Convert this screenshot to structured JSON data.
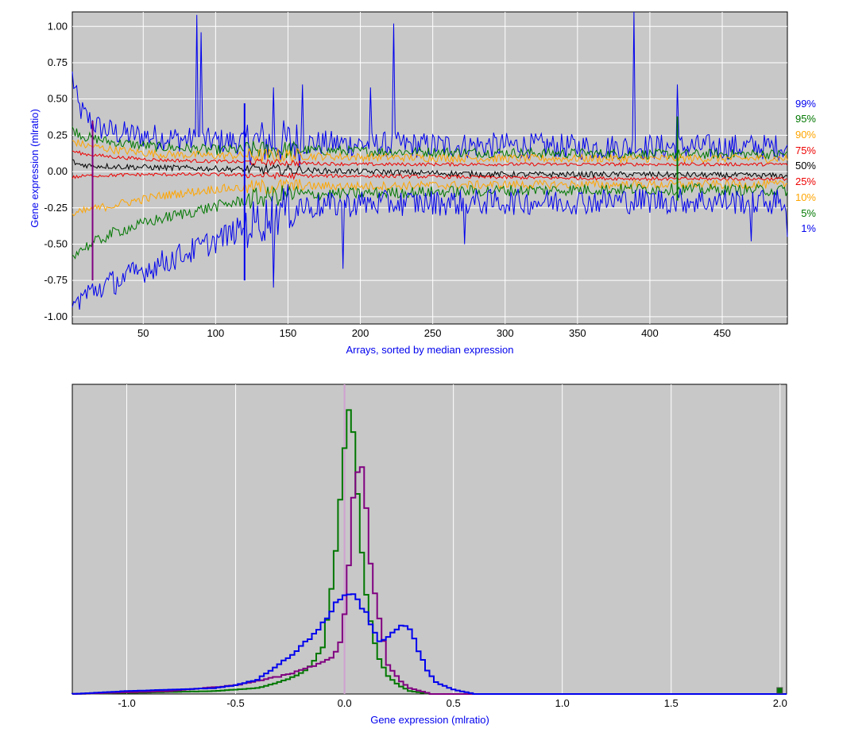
{
  "chart_data": [
    {
      "type": "line",
      "title": "",
      "xlabel": "Arrays, sorted by median expression",
      "ylabel": "Gene expression (mlratio)",
      "xlim": [
        1,
        495
      ],
      "ylim": [
        -1.05,
        1.1
      ],
      "x_ticks": [
        50,
        100,
        150,
        200,
        250,
        300,
        350,
        400,
        450
      ],
      "y_ticks": [
        -1.0,
        -0.75,
        -0.5,
        -0.25,
        0.0,
        0.25,
        0.5,
        0.75,
        1.0
      ],
      "y_tick_labels": [
        "-1.00",
        "-0.75",
        "-0.50",
        "-0.25",
        "0.00",
        "0.25",
        "0.50",
        "0.75",
        "1.00"
      ],
      "grid": true,
      "legend_placement": "right",
      "series": [
        {
          "name": "99%",
          "color": "#0000ee",
          "points": [
            [
              1,
              0.66
            ],
            [
              5,
              0.45
            ],
            [
              10,
              0.38
            ],
            [
              20,
              0.3
            ],
            [
              30,
              0.27
            ],
            [
              45,
              0.25
            ],
            [
              60,
              0.24
            ],
            [
              80,
              0.22
            ],
            [
              100,
              0.21
            ],
            [
              150,
              0.2
            ],
            [
              200,
              0.19
            ],
            [
              250,
              0.18
            ],
            [
              300,
              0.18
            ],
            [
              350,
              0.17
            ],
            [
              400,
              0.17
            ],
            [
              450,
              0.17
            ],
            [
              495,
              0.17
            ]
          ],
          "spikes": [
            [
              87,
              1.08
            ],
            [
              90,
              0.96
            ],
            [
              223,
              1.02
            ],
            [
              389,
              1.1
            ],
            [
              207,
              0.58
            ],
            [
              419,
              0.6
            ],
            [
              160,
              0.6
            ],
            [
              140,
              0.58
            ]
          ]
        },
        {
          "name": "95%",
          "color": "#007700",
          "points": [
            [
              1,
              0.29
            ],
            [
              10,
              0.24
            ],
            [
              30,
              0.2
            ],
            [
              60,
              0.17
            ],
            [
              100,
              0.15
            ],
            [
              150,
              0.15
            ],
            [
              200,
              0.14
            ],
            [
              300,
              0.13
            ],
            [
              400,
              0.12
            ],
            [
              495,
              0.12
            ]
          ]
        },
        {
          "name": "90%",
          "color": "#ffa500",
          "points": [
            [
              1,
              0.21
            ],
            [
              10,
              0.18
            ],
            [
              30,
              0.15
            ],
            [
              60,
              0.12
            ],
            [
              100,
              0.11
            ],
            [
              150,
              0.11
            ],
            [
              200,
              0.1
            ],
            [
              300,
              0.09
            ],
            [
              400,
              0.09
            ],
            [
              495,
              0.09
            ]
          ]
        },
        {
          "name": "75%",
          "color": "#ee0000",
          "points": [
            [
              1,
              0.14
            ],
            [
              10,
              0.12
            ],
            [
              30,
              0.1
            ],
            [
              60,
              0.08
            ],
            [
              100,
              0.07
            ],
            [
              150,
              0.06
            ],
            [
              200,
              0.05
            ],
            [
              300,
              0.05
            ],
            [
              400,
              0.05
            ],
            [
              495,
              0.05
            ]
          ]
        },
        {
          "name": "50%",
          "color": "#000000",
          "points": [
            [
              1,
              0.07
            ],
            [
              5,
              0.05
            ],
            [
              15,
              0.04
            ],
            [
              50,
              0.03
            ],
            [
              100,
              0.02
            ],
            [
              150,
              0.01
            ],
            [
              200,
              0.0
            ],
            [
              250,
              -0.01
            ],
            [
              300,
              -0.02
            ],
            [
              400,
              -0.02
            ],
            [
              495,
              -0.03
            ]
          ]
        },
        {
          "name": "25%",
          "color": "#ee0000",
          "points": [
            [
              1,
              -0.04
            ],
            [
              10,
              -0.03
            ],
            [
              50,
              -0.02
            ],
            [
              100,
              -0.02
            ],
            [
              150,
              -0.03
            ],
            [
              200,
              -0.03
            ],
            [
              300,
              -0.04
            ],
            [
              400,
              -0.05
            ],
            [
              495,
              -0.05
            ]
          ]
        },
        {
          "name": "10%",
          "color": "#ffa500",
          "points": [
            [
              1,
              -0.3
            ],
            [
              10,
              -0.27
            ],
            [
              30,
              -0.23
            ],
            [
              60,
              -0.17
            ],
            [
              100,
              -0.12
            ],
            [
              150,
              -0.1
            ],
            [
              200,
              -0.1
            ],
            [
              300,
              -0.09
            ],
            [
              400,
              -0.09
            ],
            [
              495,
              -0.09
            ]
          ]
        },
        {
          "name": "5%",
          "color": "#007700",
          "points": [
            [
              1,
              -0.57
            ],
            [
              10,
              -0.52
            ],
            [
              30,
              -0.42
            ],
            [
              60,
              -0.33
            ],
            [
              100,
              -0.24
            ],
            [
              130,
              -0.18
            ],
            [
              150,
              -0.16
            ],
            [
              200,
              -0.15
            ],
            [
              300,
              -0.13
            ],
            [
              400,
              -0.12
            ],
            [
              495,
              -0.13
            ]
          ]
        },
        {
          "name": "1%",
          "color": "#0000ee",
          "points": [
            [
              1,
              -0.97
            ],
            [
              5,
              -0.88
            ],
            [
              15,
              -0.82
            ],
            [
              30,
              -0.76
            ],
            [
              50,
              -0.68
            ],
            [
              70,
              -0.6
            ],
            [
              90,
              -0.52
            ],
            [
              110,
              -0.43
            ],
            [
              125,
              -0.36
            ],
            [
              135,
              -0.32
            ],
            [
              150,
              -0.25
            ],
            [
              200,
              -0.22
            ],
            [
              300,
              -0.21
            ],
            [
              400,
              -0.2
            ],
            [
              495,
              -0.21
            ]
          ],
          "spikes": [
            [
              140,
              -0.8
            ],
            [
              188,
              -0.67
            ],
            [
              272,
              -0.5
            ],
            [
              470,
              -0.48
            ],
            [
              495,
              -0.45
            ]
          ]
        }
      ],
      "markers": [
        {
          "x": 15,
          "y_from": -0.75,
          "y_to": 0.35,
          "color": "#800080"
        },
        {
          "x": 120,
          "y_from": -0.75,
          "y_to": 0.47,
          "color": "#0000ee"
        },
        {
          "x": 419,
          "y_from": -0.2,
          "y_to": 0.38,
          "color": "#007700"
        }
      ]
    },
    {
      "type": "histogram",
      "title": "",
      "xlabel": "Gene expression (mlratio)",
      "ylabel": "",
      "xlim": [
        -1.25,
        2.03
      ],
      "x_ticks": [
        -1.0,
        -0.5,
        0.0,
        0.5,
        1.0,
        1.5,
        2.0
      ],
      "x_tick_labels": [
        "-1.0",
        "-0.5",
        "0.0",
        "0.5",
        "1.0",
        "1.5",
        "2.0"
      ],
      "grid": true,
      "series": [
        {
          "name": "",
          "color": "#007700",
          "points": [
            [
              -1.25,
              0
            ],
            [
              -0.6,
              0.01
            ],
            [
              -0.4,
              0.02
            ],
            [
              -0.3,
              0.04
            ],
            [
              -0.2,
              0.07
            ],
            [
              -0.15,
              0.1
            ],
            [
              -0.1,
              0.16
            ],
            [
              -0.08,
              0.25
            ],
            [
              -0.05,
              0.4
            ],
            [
              -0.02,
              0.65
            ],
            [
              0.0,
              0.85
            ],
            [
              0.01,
              0.98
            ],
            [
              0.02,
              1.0
            ],
            [
              0.04,
              0.92
            ],
            [
              0.06,
              0.7
            ],
            [
              0.08,
              0.48
            ],
            [
              0.1,
              0.35
            ],
            [
              0.13,
              0.2
            ],
            [
              0.16,
              0.12
            ],
            [
              0.2,
              0.06
            ],
            [
              0.25,
              0.03
            ],
            [
              0.3,
              0.01
            ],
            [
              0.4,
              0.0
            ],
            [
              2.03,
              0
            ]
          ]
        },
        {
          "name": "",
          "color": "#800080",
          "points": [
            [
              -1.25,
              0
            ],
            [
              -0.8,
              0.01
            ],
            [
              -0.5,
              0.03
            ],
            [
              -0.3,
              0.06
            ],
            [
              -0.2,
              0.08
            ],
            [
              -0.1,
              0.11
            ],
            [
              -0.05,
              0.13
            ],
            [
              -0.02,
              0.18
            ],
            [
              0.0,
              0.28
            ],
            [
              0.02,
              0.45
            ],
            [
              0.04,
              0.66
            ],
            [
              0.06,
              0.78
            ],
            [
              0.08,
              0.76
            ],
            [
              0.1,
              0.62
            ],
            [
              0.12,
              0.45
            ],
            [
              0.15,
              0.3
            ],
            [
              0.18,
              0.18
            ],
            [
              0.2,
              0.1
            ],
            [
              0.25,
              0.05
            ],
            [
              0.3,
              0.02
            ],
            [
              0.4,
              0.0
            ],
            [
              2.03,
              0
            ]
          ]
        },
        {
          "name": "",
          "color": "#0000ee",
          "points": [
            [
              -1.25,
              0
            ],
            [
              -1.0,
              0.01
            ],
            [
              -0.6,
              0.02
            ],
            [
              -0.5,
              0.03
            ],
            [
              -0.4,
              0.05
            ],
            [
              -0.3,
              0.1
            ],
            [
              -0.2,
              0.16
            ],
            [
              -0.1,
              0.24
            ],
            [
              -0.05,
              0.3
            ],
            [
              0.0,
              0.34
            ],
            [
              0.03,
              0.34
            ],
            [
              0.06,
              0.32
            ],
            [
              0.1,
              0.28
            ],
            [
              0.13,
              0.22
            ],
            [
              0.16,
              0.18
            ],
            [
              0.2,
              0.19
            ],
            [
              0.24,
              0.22
            ],
            [
              0.27,
              0.24
            ],
            [
              0.3,
              0.22
            ],
            [
              0.34,
              0.15
            ],
            [
              0.38,
              0.08
            ],
            [
              0.42,
              0.04
            ],
            [
              0.5,
              0.015
            ],
            [
              0.6,
              0.0
            ],
            [
              2.03,
              0
            ]
          ]
        }
      ],
      "marker_x": 0.0,
      "marker_color": "#d0a0d0"
    }
  ]
}
